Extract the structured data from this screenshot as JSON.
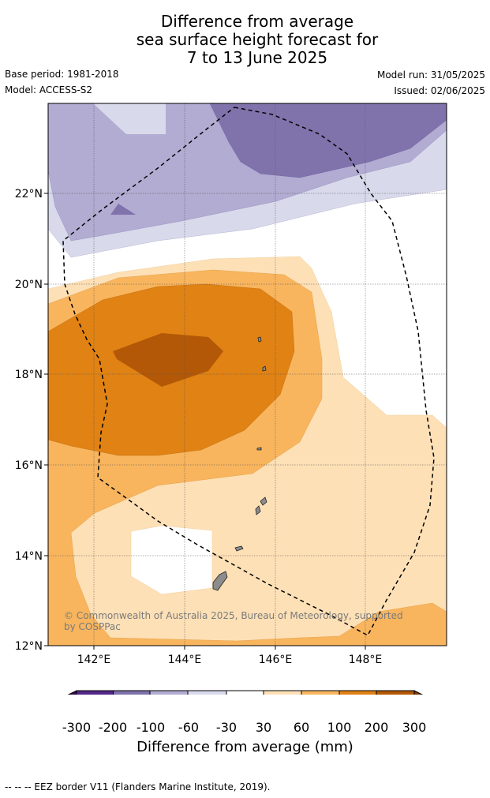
{
  "title": {
    "line1": "Difference from average",
    "line2": "sea surface height forecast for",
    "line3": "7 to 13 June 2025"
  },
  "meta": {
    "base_period": "Base period: 1981-2018",
    "model": "Model: ACCESS-S2",
    "model_run": "Model run: 31/05/2025",
    "issued": "Issued: 02/06/2025"
  },
  "map": {
    "lat_labels": [
      "22°N",
      "20°N",
      "18°N",
      "16°N",
      "14°N",
      "12°N"
    ],
    "lon_labels": [
      "142°E",
      "144°E",
      "146°E",
      "148°E"
    ],
    "credit": "© Commonwealth of Australia 2025, Bureau of Meteorology, supported by COSPPac"
  },
  "colorbar": {
    "tick_labels": [
      "-300",
      "-200",
      "-100",
      "-60",
      "-30",
      "30",
      "60",
      "100",
      "200",
      "300"
    ],
    "title": "Difference from average (mm)",
    "colors": {
      "below_min": "#2d0a4e",
      "bins": [
        "#542788",
        "#8073ac",
        "#b2abd2",
        "#d8daeb",
        "#ffffff",
        "#fee0b6",
        "#f8b55e",
        "#e08214",
        "#b35806"
      ],
      "above_max": "#7f3b08"
    }
  },
  "footer": "--  --  -- EEZ border V11 (Flanders Marine Institute, 2019)."
}
